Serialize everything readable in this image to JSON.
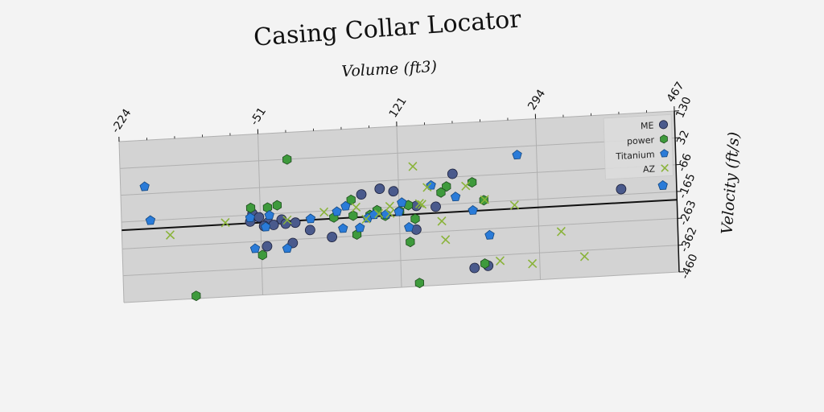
{
  "chart_data": {
    "type": "scatter",
    "title": "Casing Collar Locator",
    "xlabel": "Volume (ft3)",
    "ylabel": "Velocity (ft/s)",
    "xlim": [
      -224,
      467
    ],
    "ylim": [
      -460,
      130
    ],
    "x_ticks": [
      "-224",
      "-51",
      "121",
      "294",
      "467"
    ],
    "y_ticks": [
      "130",
      "32",
      "-66",
      "-165",
      "-263",
      "-362",
      "-460"
    ],
    "grid": true,
    "legend_position": "top-right",
    "reference_line": {
      "y": -195,
      "color": "#111111"
    },
    "series": [
      {
        "name": "ME",
        "marker": "circle",
        "color": "#4a5a8c",
        "points": [
          [
            -61,
            -161
          ],
          [
            -53,
            -175
          ],
          [
            -64,
            -189
          ],
          [
            -42,
            -196
          ],
          [
            -25,
            -188
          ],
          [
            -47,
            -208
          ],
          [
            -35,
            -206
          ],
          [
            -20,
            -204
          ],
          [
            -8,
            -202
          ],
          [
            -44,
            -283
          ],
          [
            -12,
            -276
          ],
          [
            10,
            -232
          ],
          [
            37,
            -262
          ],
          [
            75,
            -112
          ],
          [
            98,
            -95
          ],
          [
            115,
            -107
          ],
          [
            142,
            -252
          ],
          [
            167,
            -172
          ],
          [
            189,
            -55
          ],
          [
            213,
            -404
          ],
          [
            230,
            -399
          ],
          [
            398,
            -145
          ],
          [
            143,
            -165
          ]
        ]
      },
      {
        "name": "power",
        "marker": "hexagon",
        "color": "#3e9a3c",
        "points": [
          [
            -16,
            31
          ],
          [
            -63,
            -139
          ],
          [
            -42,
            -141
          ],
          [
            -30,
            -135
          ],
          [
            -134,
            -450
          ],
          [
            -50,
            -314
          ],
          [
            40,
            -191
          ],
          [
            62,
            -130
          ],
          [
            64,
            -188
          ],
          [
            68,
            -258
          ],
          [
            85,
            -189
          ],
          [
            94,
            -173
          ],
          [
            104,
            -195
          ],
          [
            122,
            -181
          ],
          [
            133,
            -161
          ],
          [
            141,
            -212
          ],
          [
            134,
            -296
          ],
          [
            181,
            -100
          ],
          [
            174,
            -121
          ],
          [
            213,
            -90
          ],
          [
            227,
            -158
          ],
          [
            226,
            -390
          ],
          [
            144,
            -448
          ]
        ]
      },
      {
        "name": "Titanium",
        "marker": "pentagon",
        "color": "#2a7bd8",
        "points": [
          [
            -194,
            -40
          ],
          [
            -188,
            -165
          ],
          [
            -64,
            -175
          ],
          [
            -45,
            -212
          ],
          [
            -59,
            -289
          ],
          [
            -19,
            -295
          ],
          [
            11,
            -191
          ],
          [
            44,
            -170
          ],
          [
            51,
            -233
          ],
          [
            55,
            -152
          ],
          [
            72,
            -234
          ],
          [
            82,
            -200
          ],
          [
            90,
            -189
          ],
          [
            105,
            -190
          ],
          [
            121,
            -183
          ],
          [
            125,
            -150
          ],
          [
            133,
            -242
          ],
          [
            162,
            -93
          ],
          [
            192,
            -140
          ],
          [
            213,
            -193
          ],
          [
            233,
            -287
          ],
          [
            270,
            1
          ],
          [
            450,
            -140
          ],
          [
            -40,
            -170
          ]
        ]
      },
      {
        "name": "AZ",
        "marker": "x",
        "color": "#8ab33a",
        "points": [
          [
            -164,
            -222
          ],
          [
            -95,
            -188
          ],
          [
            -18,
            -191
          ],
          [
            28,
            -169
          ],
          [
            68,
            -158
          ],
          [
            80,
            -203
          ],
          [
            96,
            -186
          ],
          [
            110,
            -161
          ],
          [
            140,
            -20
          ],
          [
            147,
            -157
          ],
          [
            157,
            -99
          ],
          [
            174,
            -226
          ],
          [
            178,
            -295
          ],
          [
            205,
            -102
          ],
          [
            228,
            -156
          ],
          [
            245,
            -383
          ],
          [
            265,
            -182
          ],
          [
            285,
            -400
          ],
          [
            322,
            -288
          ],
          [
            350,
            -384
          ],
          [
            110,
            -188
          ],
          [
            150,
            -161
          ]
        ]
      }
    ]
  },
  "colors": {
    "background": "#f3f3f3",
    "plot_area": "#d3d3d3",
    "grid": "#b0b0b0",
    "axis": "#111111"
  }
}
